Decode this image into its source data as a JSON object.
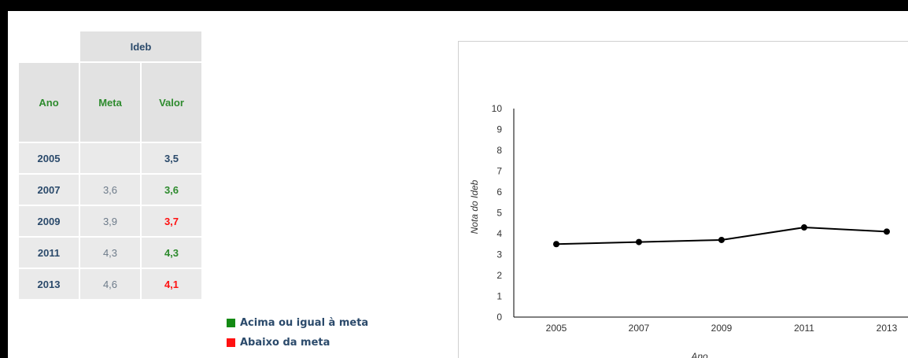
{
  "table": {
    "group_header": "Ideb",
    "columns": {
      "year": "Ano",
      "meta": "Meta",
      "valor": "Valor"
    },
    "rows": [
      {
        "year": "2005",
        "meta": "",
        "valor": "3,5",
        "status": "none"
      },
      {
        "year": "2007",
        "meta": "3,6",
        "valor": "3,6",
        "status": "above"
      },
      {
        "year": "2009",
        "meta": "3,9",
        "valor": "3,7",
        "status": "below"
      },
      {
        "year": "2011",
        "meta": "4,3",
        "valor": "4,3",
        "status": "above"
      },
      {
        "year": "2013",
        "meta": "4,6",
        "valor": "4,1",
        "status": "below"
      }
    ]
  },
  "legend": {
    "above_label": "Acima ou igual à meta",
    "below_label": "Abaixo da meta",
    "above_color": "#138a13",
    "below_color": "#ff1111"
  },
  "colors": {
    "none": "#2b4a6b",
    "above": "#2e8b2e",
    "below": "#ff1111"
  },
  "chart_data": {
    "type": "line",
    "x": [
      "2005",
      "2007",
      "2009",
      "2011",
      "2013"
    ],
    "values": [
      3.5,
      3.6,
      3.7,
      4.3,
      4.1
    ],
    "yticks": [
      "0",
      "1",
      "2",
      "3",
      "4",
      "5",
      "6",
      "7",
      "8",
      "9",
      "10"
    ],
    "ylim": [
      0,
      10
    ],
    "ylabel": "Nota do Ideb",
    "xlabel": "Ano",
    "grid": false
  }
}
